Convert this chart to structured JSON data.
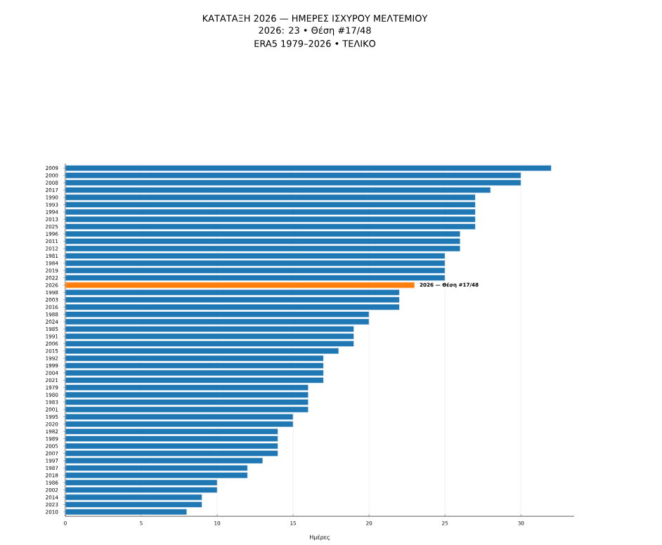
{
  "chart_data": {
    "type": "bar",
    "orientation": "horizontal",
    "title": "ΚΑΤΑΤΑΞΗ 2026 — ΗΜΕΡΕΣ ΙΣΧΥΡΟΥ ΜΕΛΤΕΜΙΟΥ",
    "subtitle": "2026: 23 • Θέση #17/48",
    "xlabel": "Ημέρες",
    "categories": [
      "2009",
      "2000",
      "2008",
      "2017",
      "1990",
      "1993",
      "1994",
      "2013",
      "2025",
      "1996",
      "2011",
      "2012",
      "1981",
      "1984",
      "2019",
      "2022",
      "2026",
      "1998",
      "2003",
      "2016",
      "1988",
      "2024",
      "1985",
      "1991",
      "2006",
      "2015",
      "1992",
      "1999",
      "2004",
      "2021",
      "1979",
      "1980",
      "1983",
      "2001",
      "1995",
      "2020",
      "1982",
      "1989",
      "2005",
      "2007",
      "1997",
      "1987",
      "2018",
      "1986",
      "2002",
      "2014",
      "2023",
      "2010"
    ],
    "values": [
      32,
      30,
      30,
      28,
      27,
      27,
      27,
      27,
      27,
      26,
      26,
      26,
      25,
      25,
      25,
      25,
      23,
      22,
      22,
      22,
      20,
      20,
      19,
      19,
      19,
      18,
      17,
      17,
      17,
      17,
      16,
      16,
      16,
      16,
      15,
      15,
      14,
      14,
      14,
      14,
      13,
      12,
      12,
      10,
      10,
      9,
      9,
      8
    ],
    "colors": [
      "#1f77b4",
      "#1f77b4",
      "#1f77b4",
      "#1f77b4",
      "#1f77b4",
      "#1f77b4",
      "#1f77b4",
      "#1f77b4",
      "#1f77b4",
      "#1f77b4",
      "#1f77b4",
      "#1f77b4",
      "#1f77b4",
      "#1f77b4",
      "#1f77b4",
      "#1f77b4",
      "#ff7f0e",
      "#1f77b4",
      "#1f77b4",
      "#1f77b4",
      "#1f77b4",
      "#1f77b4",
      "#1f77b4",
      "#1f77b4",
      "#1f77b4",
      "#1f77b4",
      "#1f77b4",
      "#1f77b4",
      "#1f77b4",
      "#1f77b4",
      "#1f77b4",
      "#1f77b4",
      "#1f77b4",
      "#1f77b4",
      "#1f77b4",
      "#1f77b4",
      "#1f77b4",
      "#1f77b4",
      "#1f77b4",
      "#1f77b4",
      "#1f77b4",
      "#1f77b4",
      "#1f77b4",
      "#1f77b4",
      "#1f77b4",
      "#1f77b4",
      "#1f77b4",
      "#1f77b4"
    ],
    "xlim": [
      0,
      33.5
    ],
    "xticks": [
      0,
      5,
      10,
      15,
      20,
      25,
      30
    ],
    "grid": "x",
    "annotations": [
      "ERA5 1979–2026 • ΤΕΛΙΚΟ",
      {
        "text": "2026 — Θέση #17/48",
        "x": 23,
        "y": "2026"
      }
    ]
  }
}
